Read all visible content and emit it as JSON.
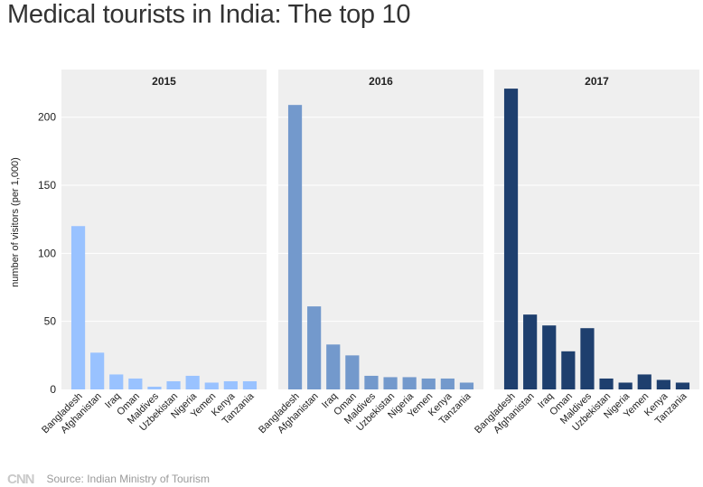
{
  "title": "Medical tourists in India: The top 10",
  "source": "Source: Indian Ministry of Tourism",
  "logo": "CNN",
  "chart_data": {
    "type": "bar",
    "ylabel": "number of visitors (per 1,000)",
    "ylim": [
      0,
      235
    ],
    "yticks": [
      0,
      50,
      100,
      150,
      200
    ],
    "categories": [
      "Bangladesh",
      "Afghanistan",
      "Iraq",
      "Oman",
      "Maldives",
      "Uzbekistan",
      "Nigeria",
      "Yemen",
      "Kenya",
      "Tanzania"
    ],
    "panels": [
      {
        "name": "2015",
        "color": "#99c2ff",
        "values": [
          120,
          27,
          11,
          8,
          2,
          6,
          10,
          5,
          6,
          6
        ]
      },
      {
        "name": "2016",
        "color": "#7399cc",
        "values": [
          209,
          61,
          33,
          25,
          10,
          9,
          9,
          8,
          8,
          5
        ]
      },
      {
        "name": "2017",
        "color": "#1e3f6e",
        "values": [
          221,
          55,
          47,
          28,
          45,
          8,
          5,
          11,
          7,
          5
        ]
      }
    ]
  }
}
